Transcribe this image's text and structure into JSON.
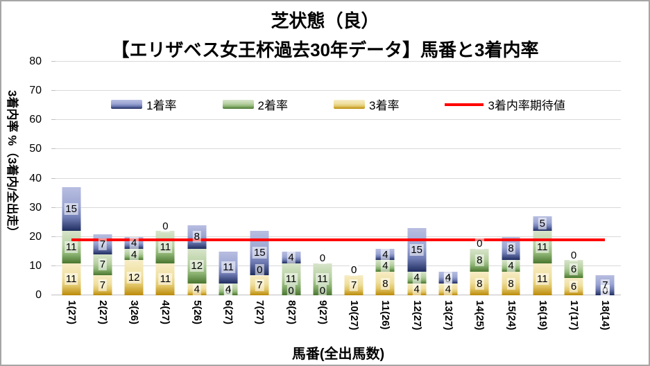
{
  "chart_data": {
    "type": "bar",
    "stacked": true,
    "title": "芝状態（良）",
    "subtitle": "【エリザベス女王杯過去30年データ】馬番と3着内率",
    "xlabel": "馬番(全出馬数)",
    "ylabel": "3着内率 %（3着内/全出走）",
    "ylim": [
      0,
      80
    ],
    "ytick_step": 10,
    "grid": true,
    "legend_position": "top",
    "categories": [
      "1(27)",
      "2(27)",
      "3(26)",
      "4(27)",
      "5(26)",
      "6(27)",
      "7(27)",
      "8(27)",
      "9(27)",
      "10(27)",
      "11(26)",
      "12(27)",
      "13(27)",
      "14(25)",
      "15(24)",
      "16(19)",
      "17(17)",
      "18(14)"
    ],
    "stack_order_bottom_to_top": [
      "3着率",
      "2着率",
      "1着率"
    ],
    "series": [
      {
        "name": "1着率",
        "color": "#6f7cb4",
        "gradient": [
          "#b8bee1",
          "#9ba5d2",
          "#6f7cb4",
          "#1f2d60"
        ],
        "values": [
          15,
          7,
          4,
          0,
          8,
          11,
          15,
          4,
          0,
          0,
          4,
          15,
          4,
          0,
          8,
          5,
          0,
          7
        ]
      },
      {
        "name": "2着率",
        "color": "#8fb575",
        "gradient": [
          "#d8e5cb",
          "#b6cfa0",
          "#8fb575",
          "#49762f"
        ],
        "values": [
          11,
          7,
          4,
          11,
          12,
          4,
          0,
          11,
          11,
          0,
          4,
          4,
          0,
          8,
          4,
          11,
          6,
          0
        ]
      },
      {
        "name": "3着率",
        "color": "#e2c76a",
        "gradient": [
          "#f7edc6",
          "#efdf9e",
          "#e2c76a",
          "#bb8a08"
        ],
        "values": [
          11,
          7,
          12,
          11,
          4,
          0,
          7,
          0,
          0,
          7,
          8,
          4,
          4,
          8,
          8,
          11,
          6,
          0
        ]
      }
    ],
    "expectation_line": {
      "name": "3着内率期待値",
      "value": 18.9,
      "color": "#ff0000"
    }
  },
  "colors": {
    "grid": "#d9d9d9",
    "text": "#000000",
    "expectation_line": "#ff0000"
  }
}
